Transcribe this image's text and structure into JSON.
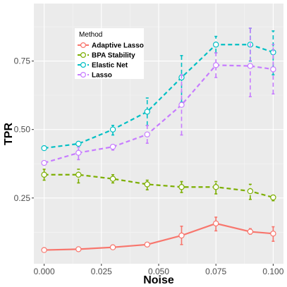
{
  "chart_data": {
    "type": "line",
    "title": "",
    "xlabel": "Noise",
    "ylabel": "TPR",
    "xlim": [
      -0.0045,
      0.1045
    ],
    "ylim": [
      0.01,
      0.96
    ],
    "x_ticks": [
      0.0,
      0.025,
      0.05,
      0.075,
      0.1
    ],
    "x_tick_labels": [
      "0.000",
      "0.025",
      "0.050",
      "0.075",
      "0.100"
    ],
    "y_ticks": [
      0.25,
      0.5,
      0.75
    ],
    "y_tick_labels": [
      "0.25",
      "0.50",
      "0.75"
    ],
    "grid": true,
    "legend": {
      "title": "Method",
      "position": "top-left inside"
    },
    "x": [
      0.0,
      0.015,
      0.03,
      0.045,
      0.06,
      0.075,
      0.09,
      0.1
    ],
    "series": [
      {
        "name": "Adaptive Lasso",
        "color": "#F8766D",
        "style": "solid",
        "values": [
          0.06,
          0.063,
          0.07,
          0.08,
          0.113,
          0.157,
          0.127,
          0.12
        ],
        "error_low": [
          0.055,
          0.057,
          0.063,
          0.076,
          0.08,
          0.13,
          0.118,
          0.092
        ],
        "error_high": [
          0.064,
          0.068,
          0.078,
          0.085,
          0.147,
          0.18,
          0.138,
          0.145
        ]
      },
      {
        "name": "BPA Stability",
        "color": "#7CAE00",
        "style": "dashed",
        "values": [
          0.335,
          0.335,
          0.32,
          0.3,
          0.29,
          0.29,
          0.275,
          0.252
        ],
        "error_low": [
          0.315,
          0.305,
          0.305,
          0.28,
          0.27,
          0.265,
          0.245,
          0.24
        ],
        "error_high": [
          0.355,
          0.355,
          0.335,
          0.315,
          0.31,
          0.31,
          0.3,
          0.26
        ]
      },
      {
        "name": "Elastic Net",
        "color": "#00BFC4",
        "style": "dashed",
        "values": [
          0.432,
          0.448,
          0.5,
          0.565,
          0.69,
          0.81,
          0.81,
          0.782
        ],
        "error_low": [
          0.43,
          0.445,
          0.48,
          0.515,
          0.6,
          0.78,
          0.75,
          0.7
        ],
        "error_high": [
          0.435,
          0.452,
          0.515,
          0.615,
          0.77,
          0.84,
          0.87,
          0.86
        ]
      },
      {
        "name": "Lasso",
        "color": "#C77CFF",
        "style": "dashed",
        "values": [
          0.378,
          0.415,
          0.437,
          0.482,
          0.59,
          0.735,
          0.732,
          0.72
        ],
        "error_low": [
          0.375,
          0.39,
          0.425,
          0.45,
          0.48,
          0.69,
          0.62,
          0.63
        ],
        "error_high": [
          0.382,
          0.435,
          0.445,
          0.515,
          0.7,
          0.78,
          0.87,
          0.81
        ]
      }
    ]
  }
}
